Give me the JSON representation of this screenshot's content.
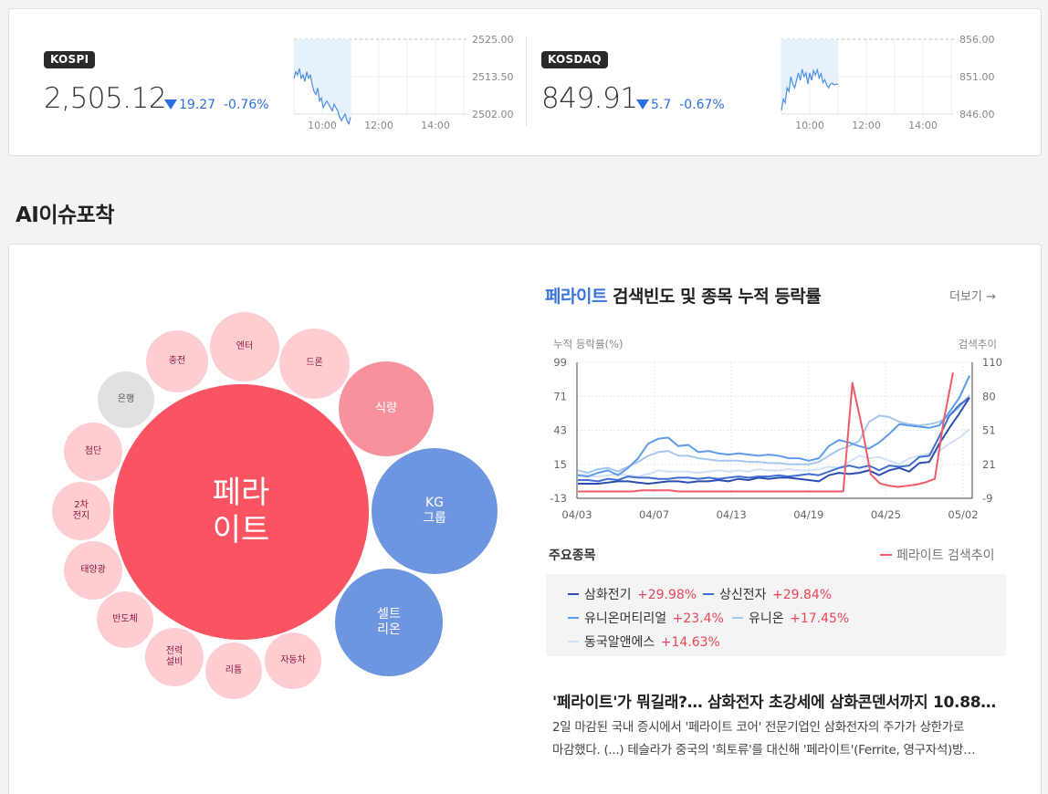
{
  "indices": [
    {
      "badge": "KOSPI",
      "value": "2,505.12",
      "change": "19.27",
      "change_pct": "-0.76%",
      "direction": "down",
      "chart": {
        "y_ticks": [
          "2525.00",
          "2513.50",
          "2502.00"
        ],
        "x_ticks": [
          "10:00",
          "12:00",
          "14:00"
        ],
        "reference": 2525.0,
        "series": [
          2513,
          2515,
          2514,
          2516,
          2513,
          2514,
          2512,
          2515,
          2513,
          2514,
          2511,
          2509,
          2508,
          2510,
          2506,
          2507,
          2504,
          2505,
          2506,
          2505,
          2504,
          2503,
          2505,
          2504,
          2503,
          2501,
          2500,
          2501,
          2502,
          2500,
          2499,
          2501
        ]
      }
    },
    {
      "badge": "KOSDAQ",
      "value": "849.91",
      "change": "5.7",
      "change_pct": "-0.67%",
      "direction": "down",
      "chart": {
        "y_ticks": [
          "856.00",
          "851.00",
          "846.00"
        ],
        "x_ticks": [
          "10:00",
          "12:00",
          "14:00"
        ],
        "reference": 856.0,
        "series": [
          846.5,
          848,
          847.5,
          849.5,
          849,
          851,
          850,
          849.5,
          850.5,
          851.5,
          850.5,
          852,
          851,
          851.5,
          850,
          851.5,
          850.5,
          851.8,
          851.2,
          851.9,
          850.8,
          851.4,
          850.2,
          850.6,
          849.9,
          849.5,
          850,
          850.1,
          849.9,
          850,
          850
        ]
      }
    }
  ],
  "section_title": "AI이슈포착",
  "bubbles": [
    {
      "label": "페라\n이트"
    },
    {
      "label": "KG\n그룹"
    },
    {
      "label": "셀트\n리온"
    },
    {
      "label": "식량"
    },
    {
      "label": "드론"
    },
    {
      "label": "엔터"
    },
    {
      "label": "충전"
    },
    {
      "label": "은행"
    },
    {
      "label": "첨단"
    },
    {
      "label": "2차\n전지"
    },
    {
      "label": "태양광"
    },
    {
      "label": "반도체"
    },
    {
      "label": "전력\n설비"
    },
    {
      "label": "리튬"
    },
    {
      "label": "자동차"
    }
  ],
  "panel": {
    "title_keyword": "페라이트",
    "title_rest": " 검색빈도 및 종목 누적 등락률",
    "more_link": "더보기 →"
  },
  "chart_data": {
    "type": "line",
    "ylabel_left": "누적 등락률(%)",
    "ylabel_right": "검색추이",
    "yticks_left": [
      "99",
      "71",
      "43",
      "15",
      "-13"
    ],
    "yticks_right": [
      "110",
      "80",
      "51",
      "21",
      "-9"
    ],
    "xticks": [
      "04/03",
      "04/07",
      "04/13",
      "04/19",
      "04/25",
      "05/02"
    ],
    "ylim_left": [
      -13,
      99
    ],
    "ylim_right": [
      -9,
      110
    ],
    "series": [
      {
        "name": "삼화전기",
        "axis": "left",
        "color": "#2b4db0",
        "values": [
          -1,
          -1,
          -1,
          0,
          1,
          1,
          0,
          -1,
          0,
          1,
          1,
          0,
          1,
          1,
          2,
          1,
          3,
          2,
          4,
          3,
          4,
          4,
          3,
          2,
          1,
          6,
          8,
          7,
          8,
          10,
          6,
          10,
          12,
          9,
          16,
          17,
          32,
          45,
          57,
          70
        ]
      },
      {
        "name": "상신전자",
        "axis": "left",
        "color": "#3f6fd0",
        "values": [
          2,
          2,
          1,
          3,
          2,
          5,
          4,
          4,
          3,
          3,
          4,
          4,
          3,
          4,
          3,
          4,
          5,
          4,
          5,
          5,
          6,
          5,
          6,
          7,
          6,
          9,
          12,
          14,
          12,
          14,
          10,
          14,
          13,
          14,
          21,
          22,
          38,
          55,
          64,
          70
        ]
      },
      {
        "name": "유니온머티리얼",
        "axis": "left",
        "color": "#5d9cec",
        "values": [
          6,
          5,
          8,
          10,
          6,
          12,
          20,
          32,
          36,
          37,
          30,
          31,
          25,
          26,
          24,
          23,
          24,
          23,
          22,
          23,
          22,
          20,
          20,
          18,
          20,
          30,
          35,
          33,
          30,
          28,
          33,
          40,
          48,
          47,
          46,
          45,
          47,
          58,
          70,
          88
        ]
      },
      {
        "name": "유니온",
        "axis": "left",
        "color": "#a5c8f1",
        "values": [
          10,
          8,
          11,
          12,
          9,
          13,
          17,
          22,
          25,
          26,
          22,
          22,
          20,
          19,
          18,
          18,
          18,
          17,
          17,
          16,
          16,
          15,
          15,
          15,
          17,
          22,
          27,
          30,
          34,
          50,
          55,
          54,
          50,
          48,
          47,
          48,
          50,
          55,
          62,
          72
        ]
      },
      {
        "name": "동국알앤에스",
        "axis": "left",
        "color": "#d1e2f6",
        "values": [
          7,
          6,
          5,
          6,
          7,
          6,
          5,
          7,
          10,
          9,
          9,
          9,
          8,
          9,
          10,
          9,
          10,
          9,
          11,
          10,
          10,
          11,
          10,
          10,
          11,
          13,
          12,
          17,
          22,
          20,
          21,
          18,
          15,
          20,
          22,
          24,
          26,
          32,
          37,
          44
        ]
      },
      {
        "name": "페라이트 검색추이",
        "axis": "right",
        "color": "#ef5a6a",
        "values": [
          -3,
          -3,
          -3,
          -3,
          -3,
          -3,
          -3,
          -2,
          -2,
          -2,
          -2,
          -3,
          -3,
          -3,
          -3,
          -3,
          -3,
          -3,
          -3,
          -3,
          -3,
          -3,
          -3,
          -3,
          -3,
          -3,
          -3,
          -3,
          -3,
          -3,
          92,
          55,
          12,
          4,
          2,
          1,
          2,
          3,
          5,
          8,
          60,
          101
        ]
      }
    ],
    "legend_trend": "페라이트 검색추이"
  },
  "stocks_heading": "주요종목",
  "stocks": [
    {
      "name": "삼화전기",
      "change": "+29.98%",
      "color": "#2b4db0"
    },
    {
      "name": "상신전자",
      "change": "+29.84%",
      "color": "#3f6fd0"
    },
    {
      "name": "유니온머티리얼",
      "change": "+23.4%",
      "color": "#5d9cec"
    },
    {
      "name": "유니온",
      "change": "+17.45%",
      "color": "#a5c8f1"
    },
    {
      "name": "동국알앤에스",
      "change": "+14.63%",
      "color": "#d1e2f6"
    }
  ],
  "news": {
    "title": "'페라이트'가 뭐길래?… 삼화전자 초강세에 삼화콘덴서까지 10.88…",
    "line1": "2일 마감된 국내 증시에서 '페라이트 코어' 전문기업인 삼화전자의 주가가 상한가로",
    "line2": "마감했다. (...) 테슬라가 중국의 '희토류'를 대신해 '페라이트'(Ferrite, 영구자석)방…"
  }
}
